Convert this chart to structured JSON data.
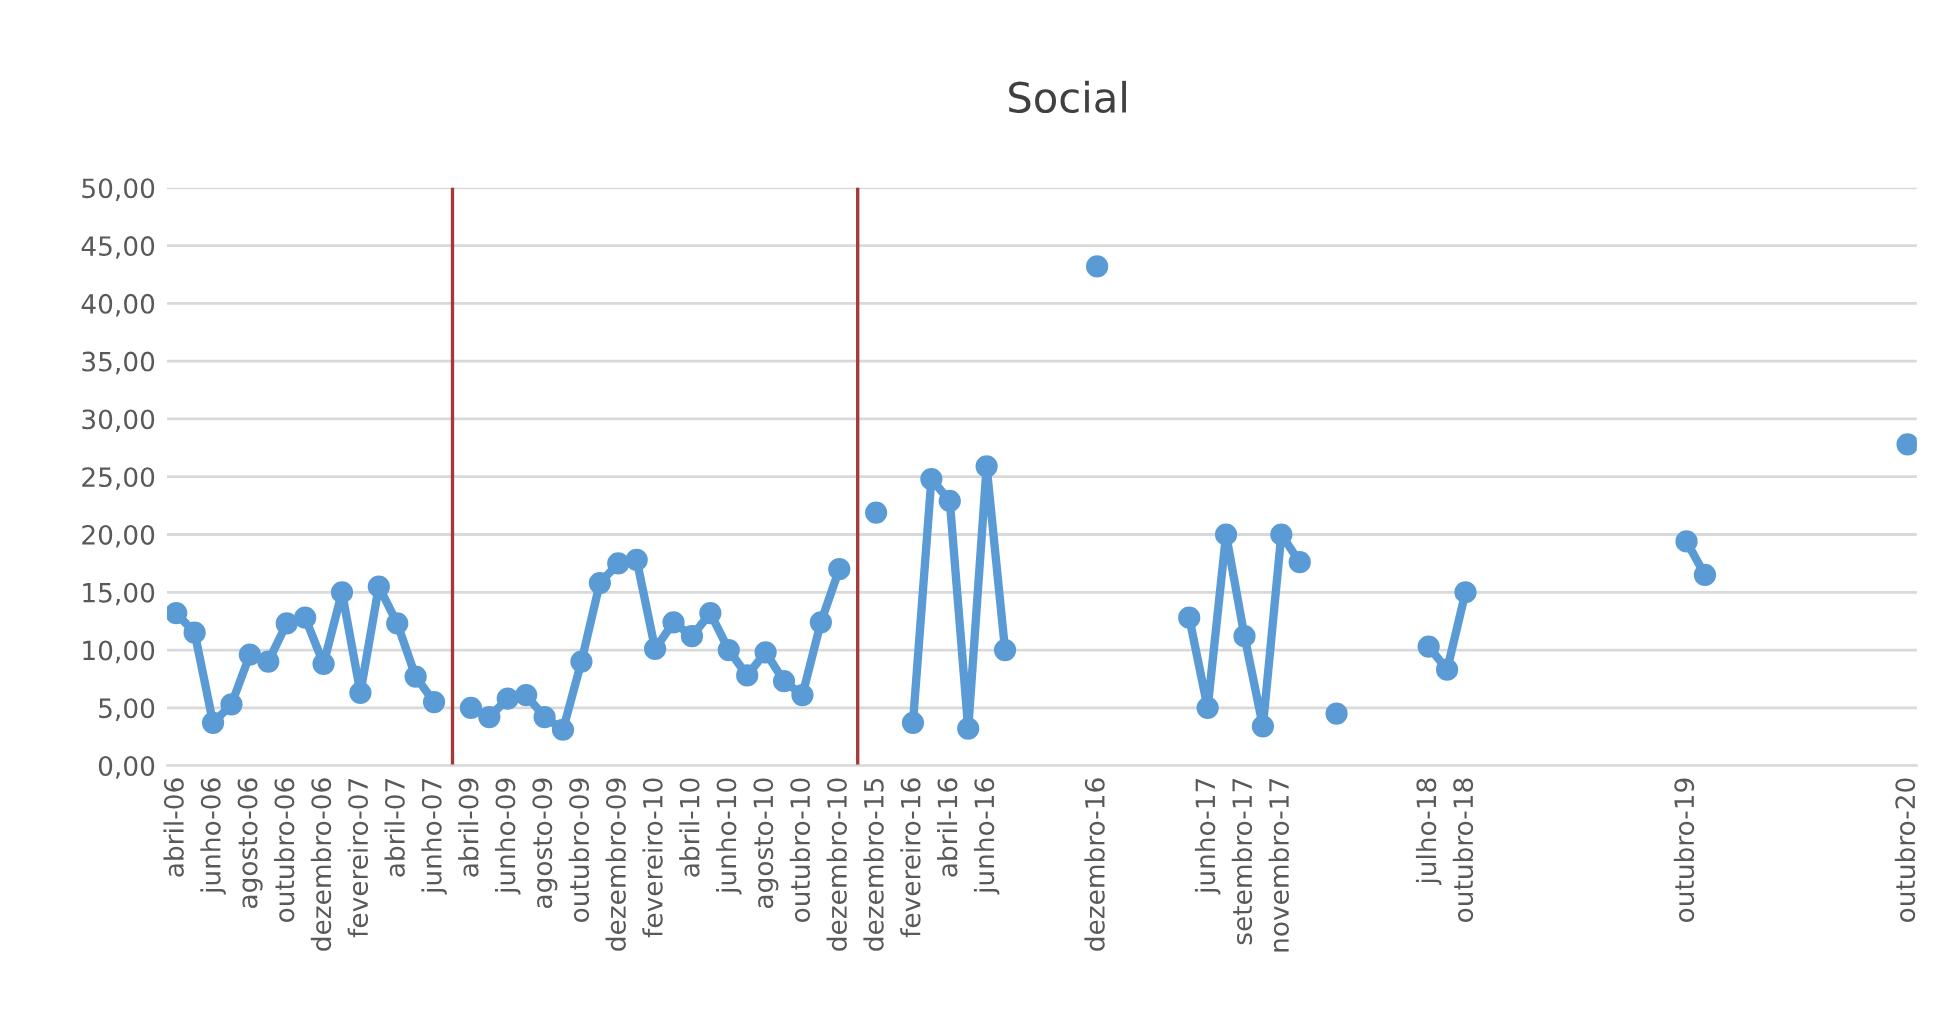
{
  "chart_data": {
    "type": "line",
    "title": "Social",
    "categories": [
      "abril-06",
      null,
      "junho-06",
      null,
      "agosto-06",
      null,
      "outubro-06",
      null,
      "dezembro-06",
      null,
      "fevereiro-07",
      null,
      "abril-07",
      null,
      "junho-07",
      null,
      "abril-09",
      null,
      "junho-09",
      null,
      "agosto-09",
      null,
      "outubro-09",
      null,
      "dezembro-09",
      null,
      "fevereiro-10",
      null,
      "abril-10",
      null,
      "junho-10",
      null,
      "agosto-10",
      null,
      "outubro-10",
      null,
      "dezembro-10",
      null,
      "dezembro-15",
      null,
      "fevereiro-16",
      null,
      "abril-16",
      null,
      "junho-16",
      null,
      null,
      null,
      null,
      null,
      "dezembro-16",
      null,
      null,
      null,
      null,
      null,
      "junho-17",
      null,
      "setembro-17",
      null,
      "novembro-17",
      null,
      null,
      null,
      null,
      null,
      null,
      null,
      "julho-18",
      null,
      "outubro-18",
      null,
      null,
      null,
      null,
      null,
      null,
      null,
      null,
      null,
      null,
      null,
      "outubro-19",
      null,
      null,
      null,
      null,
      null,
      null,
      null,
      null,
      null,
      null,
      null,
      "outubro-20"
    ],
    "series": [
      {
        "color": "#5b9bd5",
        "values": [
          13.2,
          11.5,
          3.7,
          5.3,
          9.6,
          9.0,
          12.3,
          12.8,
          8.8,
          15.0,
          6.3,
          15.5,
          12.3,
          7.7,
          5.5,
          null,
          5.0,
          4.2,
          5.8,
          6.1,
          4.2,
          3.1,
          9.0,
          15.8,
          17.5,
          17.8,
          10.1,
          12.4,
          11.2,
          13.2,
          10.0,
          7.8,
          9.8,
          7.3,
          6.1,
          12.4,
          17.0,
          null,
          21.9,
          null,
          3.7,
          24.8,
          22.9,
          3.2,
          25.9,
          10.0,
          null,
          null,
          null,
          null,
          43.2,
          null,
          null,
          null,
          null,
          12.8,
          5.0,
          20.0,
          11.2,
          3.4,
          20.0,
          17.6,
          null,
          4.5,
          null,
          null,
          null,
          null,
          10.3,
          8.3,
          15.0,
          null,
          null,
          null,
          null,
          null,
          null,
          null,
          null,
          null,
          null,
          null,
          19.4,
          16.5,
          null,
          null,
          null,
          null,
          null,
          null,
          null,
          null,
          null,
          null,
          27.8
        ]
      }
    ],
    "ylim": [
      0,
      50
    ],
    "yticks": [
      {
        "value": 0,
        "label": "0,00"
      },
      {
        "value": 5,
        "label": "5,00"
      },
      {
        "value": 10,
        "label": "10,00"
      },
      {
        "value": 15,
        "label": "15,00"
      },
      {
        "value": 20,
        "label": "20,00"
      },
      {
        "value": 25,
        "label": "25,00"
      },
      {
        "value": 30,
        "label": "30,00"
      },
      {
        "value": 35,
        "label": "35,00"
      },
      {
        "value": 40,
        "label": "40,00"
      },
      {
        "value": 45,
        "label": "45,00"
      },
      {
        "value": 50,
        "label": "50,00"
      }
    ],
    "grid": "y",
    "marker": "circle",
    "line_style": "solid",
    "legend": false
  }
}
